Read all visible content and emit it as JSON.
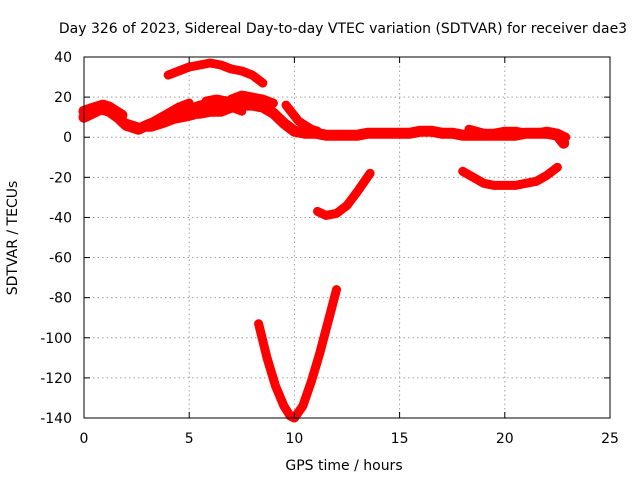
{
  "chart_data": {
    "type": "scatter",
    "title": "Day 326 of 2023, Sidereal Day-to-day VTEC variation (SDTVAR) for receiver dae3",
    "xlabel": "GPS time / hours",
    "ylabel": "SDTVAR / TECUs",
    "xlim": [
      0,
      25
    ],
    "ylim": [
      -140,
      40
    ],
    "xticks": [
      0,
      5,
      10,
      15,
      20,
      25
    ],
    "yticks": [
      -140,
      -120,
      -100,
      -80,
      -60,
      -40,
      -20,
      0,
      20,
      40
    ],
    "grid": true,
    "color": "#ff0000",
    "series": [
      {
        "name": "arc-main",
        "band": 4,
        "x": [
          0.0,
          0.4,
          0.8,
          1.2,
          1.6,
          2.0,
          2.3,
          2.6,
          3.0,
          3.5,
          4.0,
          4.5,
          5.0,
          5.5,
          6.0,
          6.5,
          7.0,
          7.5,
          8.0,
          8.5,
          9.0,
          9.5,
          10.0,
          10.5,
          11.0,
          11.5,
          12.0,
          12.5,
          13.0,
          13.5,
          14.0,
          14.5,
          15.0,
          15.5,
          16.0,
          16.5,
          17.0,
          17.5,
          18.0,
          18.5,
          19.0,
          19.5,
          20.0,
          20.5,
          21.0,
          21.5,
          22.0,
          22.5,
          22.8
        ],
        "y": [
          10,
          12,
          14,
          13,
          10,
          6,
          5,
          4,
          6,
          8,
          10,
          12,
          12,
          12,
          13,
          13,
          15,
          16,
          16,
          15,
          12,
          7,
          3,
          2,
          2,
          1,
          1,
          1,
          1,
          2,
          2,
          2,
          2,
          2,
          3,
          3,
          2,
          2,
          1,
          1,
          1,
          1,
          1,
          1,
          2,
          2,
          2,
          1,
          -3
        ]
      },
      {
        "name": "arc-early",
        "band": 4,
        "x": [
          0.0,
          0.3,
          0.6,
          0.9,
          1.2,
          1.5,
          1.8
        ],
        "y": [
          13,
          14,
          15,
          16,
          15,
          13,
          11
        ]
      },
      {
        "name": "arc-mid-low",
        "band": 3,
        "x": [
          2.0,
          2.6,
          3.2,
          3.8,
          4.3,
          4.8,
          5.2
        ],
        "y": [
          7,
          5,
          5,
          7,
          9,
          10,
          11
        ]
      },
      {
        "name": "arc-mid-high",
        "band": 3,
        "x": [
          3.0,
          3.5,
          4.0,
          4.5,
          5.0
        ],
        "y": [
          6,
          9,
          12,
          15,
          17
        ]
      },
      {
        "name": "arc-mid-cluster",
        "band": 3,
        "x": [
          5.0,
          5.5,
          6.0,
          6.5,
          7.0,
          7.5
        ],
        "y": [
          14,
          16,
          17,
          16,
          15,
          13
        ]
      },
      {
        "name": "arc-bump-a",
        "band": 3,
        "x": [
          5.8,
          6.3,
          6.8,
          7.3,
          7.8
        ],
        "y": [
          18,
          19,
          18,
          17,
          16
        ]
      },
      {
        "name": "arc-bump-b",
        "band": 3,
        "x": [
          7.0,
          7.5,
          8.0,
          8.5,
          9.0
        ],
        "y": [
          19,
          21,
          20,
          19,
          17
        ]
      },
      {
        "name": "arc-top",
        "band": 3,
        "x": [
          4.0,
          4.5,
          5.0,
          5.5,
          6.0,
          6.5,
          7.0,
          7.5,
          8.0,
          8.5
        ],
        "y": [
          31,
          33,
          35,
          36,
          37,
          36,
          34,
          33,
          31,
          27
        ]
      },
      {
        "name": "arc-drop",
        "band": 3,
        "x": [
          9.6,
          9.9,
          10.2,
          10.5,
          10.8,
          11.1
        ],
        "y": [
          16,
          12,
          8,
          6,
          4,
          3
        ]
      },
      {
        "name": "arc-neg-38",
        "band": 3,
        "x": [
          11.1,
          11.5,
          12.0,
          12.5,
          13.0,
          13.6
        ],
        "y": [
          -37,
          -39,
          -38,
          -34,
          -27,
          -18
        ]
      },
      {
        "name": "arc-deep",
        "band": 3,
        "x": [
          8.3,
          8.7,
          9.1,
          9.5,
          9.8,
          10.0,
          10.4,
          10.8,
          11.2,
          11.6,
          12.0
        ],
        "y": [
          -93,
          -110,
          -124,
          -134,
          -139,
          -140,
          -134,
          -122,
          -108,
          -92,
          -76
        ]
      },
      {
        "name": "arc-neg-24",
        "band": 3,
        "x": [
          18.0,
          18.5,
          19.0,
          19.5,
          20.0,
          20.5,
          21.0,
          21.5,
          22.0,
          22.5
        ],
        "y": [
          -17,
          -20,
          -23,
          -24,
          -24,
          -24,
          -23,
          -22,
          -19,
          -15
        ]
      },
      {
        "name": "arc-late",
        "band": 3,
        "x": [
          18.3,
          19.0,
          19.5,
          20.0,
          20.5,
          21.0,
          21.5,
          22.0,
          22.5,
          22.9
        ],
        "y": [
          4,
          2,
          2,
          3,
          3,
          2,
          2,
          3,
          2,
          0
        ]
      }
    ]
  }
}
